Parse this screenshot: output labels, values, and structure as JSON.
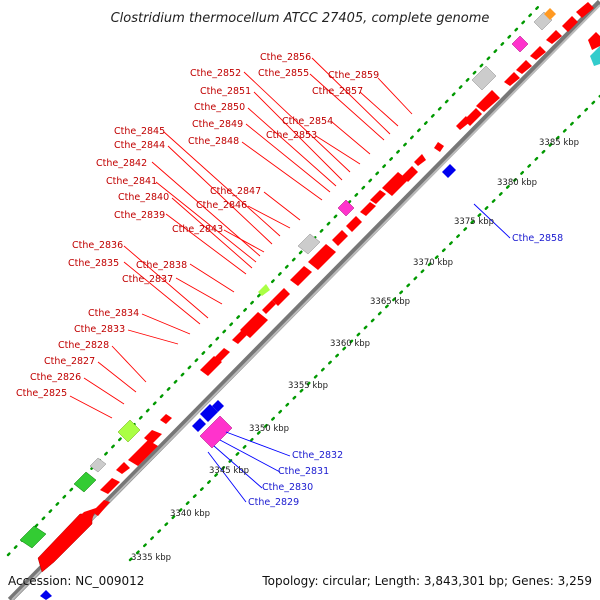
{
  "title": "Clostridium thermocellum ATCC 27405, complete genome",
  "footer": {
    "accession": "Accession: NC_009012",
    "topology": "Topology: circular; Length: 3,843,301 bp; Genes: 3,259"
  },
  "colors": {
    "forward_gene": "#ff0000",
    "reverse_gene": "#0000ee",
    "backbone": "#888888",
    "tick_dots": "#009900",
    "label_forward": "#c00000",
    "label_reverse": "#1a1ad0"
  },
  "ticks": [
    "3335 kbp",
    "3340 kbp",
    "3345 kbp",
    "3350 kbp",
    "3355 kbp",
    "3360 kbp",
    "3365 kbp",
    "3370 kbp",
    "3375 kbp",
    "3380 kbp",
    "3385 kbp"
  ],
  "labels_forward": [
    "Cthe_2825",
    "Cthe_2826",
    "Cthe_2827",
    "Cthe_2828",
    "Cthe_2833",
    "Cthe_2834",
    "Cthe_2835",
    "Cthe_2836",
    "Cthe_2837",
    "Cthe_2838",
    "Cthe_2839",
    "Cthe_2840",
    "Cthe_2841",
    "Cthe_2842",
    "Cthe_2843",
    "Cthe_2844",
    "Cthe_2845",
    "Cthe_2846",
    "Cthe_2847",
    "Cthe_2848",
    "Cthe_2849",
    "Cthe_2850",
    "Cthe_2851",
    "Cthe_2852",
    "Cthe_2853",
    "Cthe_2854",
    "Cthe_2855",
    "Cthe_2856",
    "Cthe_2857",
    "Cthe_2859"
  ],
  "labels_reverse": [
    "Cthe_2829",
    "Cthe_2830",
    "Cthe_2831",
    "Cthe_2832",
    "Cthe_2858"
  ]
}
